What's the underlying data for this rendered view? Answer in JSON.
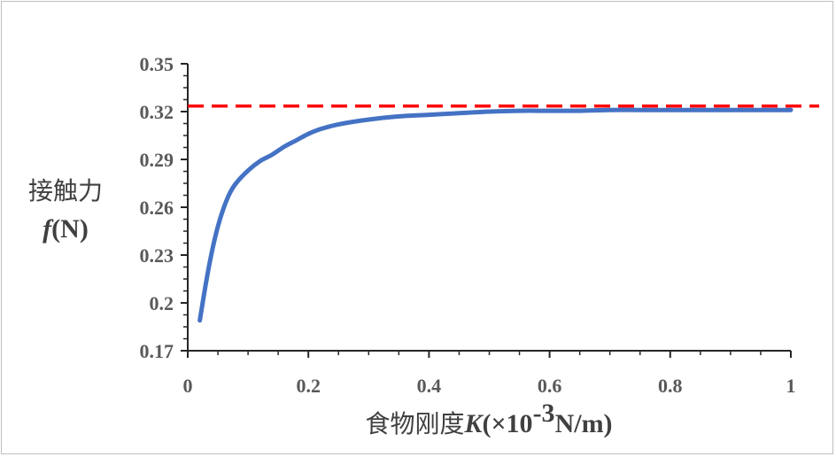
{
  "chart_data": {
    "type": "line",
    "title": "",
    "xlabel": {
      "prefix": "食物刚度",
      "var": "K",
      "unit_open": "(×10",
      "unit_exp": "-3",
      "unit_close": "N/m)"
    },
    "ylabel": {
      "line1": "接触力",
      "var": "f",
      "unit": "(N)"
    },
    "xlim": [
      0,
      1
    ],
    "ylim": [
      0.17,
      0.35
    ],
    "x_ticks": [
      "0",
      "0.2",
      "0.4",
      "0.6",
      "0.8",
      "1"
    ],
    "y_ticks": [
      "0.17",
      "0.2",
      "0.23",
      "0.26",
      "0.29",
      "0.32",
      "0.35"
    ],
    "grid": false,
    "legend": "none",
    "reference_line": {
      "y": 0.3235,
      "color": "#ff0000",
      "style": "dashed"
    },
    "series": [
      {
        "color": "#4472c4",
        "x": [
          0.02,
          0.03,
          0.04,
          0.05,
          0.06,
          0.07,
          0.08,
          0.1,
          0.12,
          0.14,
          0.16,
          0.18,
          0.2,
          0.22,
          0.25,
          0.3,
          0.35,
          0.4,
          0.45,
          0.5,
          0.55,
          0.6,
          0.65,
          0.7,
          0.75,
          0.8,
          0.85,
          0.9,
          0.95,
          1.0
        ],
        "y": [
          0.189,
          0.212,
          0.232,
          0.248,
          0.26,
          0.269,
          0.275,
          0.283,
          0.289,
          0.293,
          0.298,
          0.302,
          0.306,
          0.309,
          0.312,
          0.315,
          0.317,
          0.318,
          0.319,
          0.32,
          0.3205,
          0.3205,
          0.3205,
          0.321,
          0.321,
          0.321,
          0.321,
          0.321,
          0.321,
          0.321
        ]
      }
    ]
  }
}
